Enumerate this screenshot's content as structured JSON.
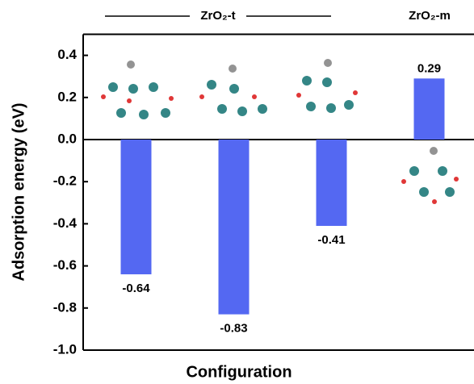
{
  "chart_data": {
    "type": "bar",
    "x_label": "Configuration",
    "y_label": "Adsorption energy (eV)",
    "group_labels": [
      "ZrO₂-t",
      "ZrO₂-m"
    ],
    "categories": [
      null,
      null,
      null,
      null
    ],
    "values": [
      -0.64,
      -0.83,
      -0.41,
      0.29
    ],
    "color": "#5468f2",
    "ylim": [
      -1.0,
      0.5
    ],
    "yticks": [
      0.4,
      0.2,
      {
        "value": 0,
        "label": "0.0"
      },
      -0.2,
      -0.4,
      -0.6,
      -0.8,
      {
        "value": -1,
        "label": "-1.0"
      }
    ]
  }
}
